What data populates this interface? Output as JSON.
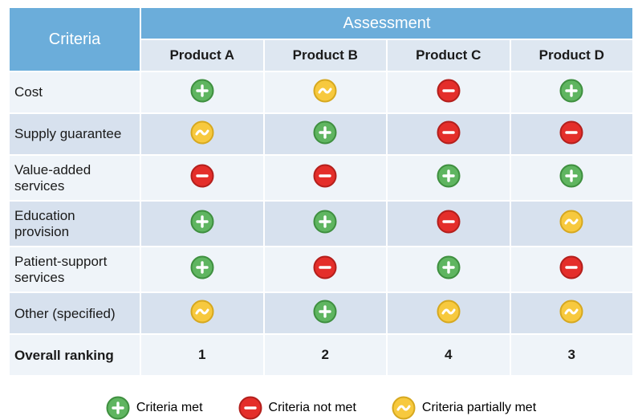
{
  "colors": {
    "header_bg": "#6badda",
    "sub_header_bg": "#dee7f1",
    "row_alt1": "#eff4f9",
    "row_alt2": "#d7e1ee",
    "text": "#1a1a1a",
    "header_text": "#ffffff",
    "met_fill": "#5fb560",
    "met_stroke": "#3e8f3f",
    "notmet_fill": "#e42e2a",
    "notmet_stroke": "#b31f1c",
    "partial_fill": "#f7c93e",
    "partial_stroke": "#d6a81f",
    "glyph": "#ffffff"
  },
  "badge_size": 30,
  "header": {
    "criteria_label": "Criteria",
    "assessment_label": "Assessment",
    "products": [
      "Product A",
      "Product B",
      "Product C",
      "Product D"
    ]
  },
  "rows": [
    {
      "label": "Cost",
      "values": [
        "met",
        "partial",
        "notmet",
        "met"
      ]
    },
    {
      "label": "Supply guarantee",
      "values": [
        "partial",
        "met",
        "notmet",
        "notmet"
      ]
    },
    {
      "label": "Value-added services",
      "values": [
        "notmet",
        "notmet",
        "met",
        "met"
      ]
    },
    {
      "label": "Education provision",
      "values": [
        "met",
        "met",
        "notmet",
        "partial"
      ]
    },
    {
      "label": "Patient-support services",
      "values": [
        "met",
        "notmet",
        "met",
        "notmet"
      ]
    },
    {
      "label": "Other (specified)",
      "values": [
        "partial",
        "met",
        "partial",
        "partial"
      ]
    }
  ],
  "ranking": {
    "label": "Overall ranking",
    "values": [
      "1",
      "2",
      "4",
      "3"
    ]
  },
  "legend": {
    "met": "Criteria met",
    "notmet": "Criteria not met",
    "partial": "Criteria partially met"
  }
}
